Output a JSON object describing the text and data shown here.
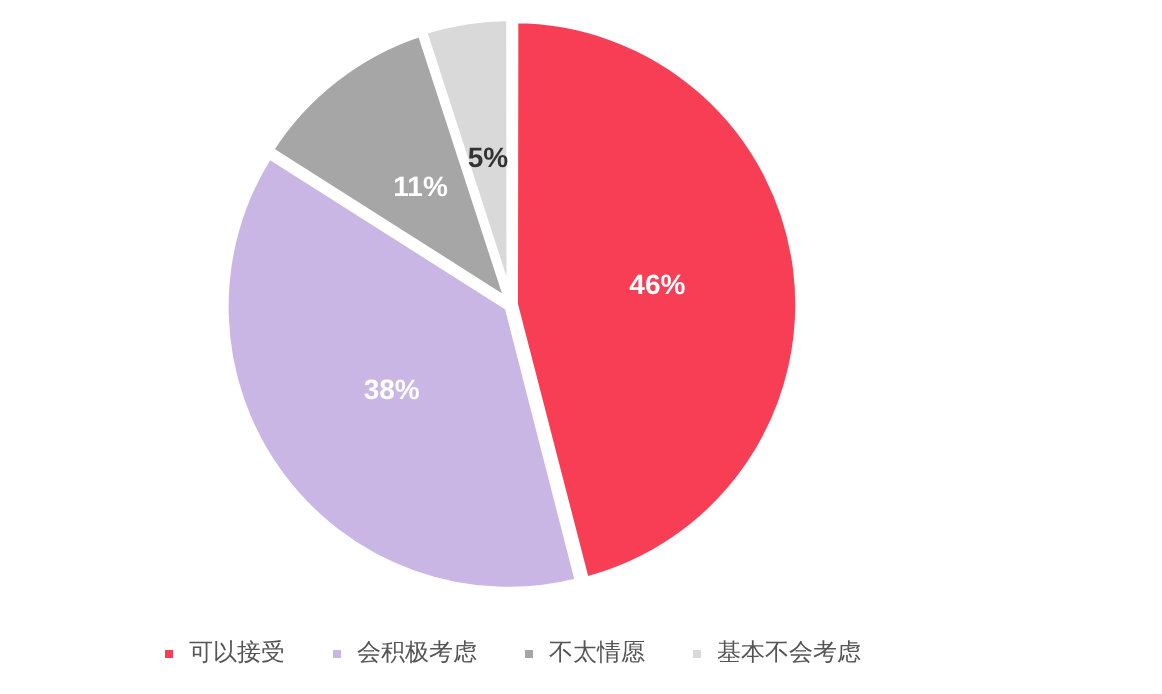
{
  "chart_data": {
    "type": "pie",
    "categories": [
      "可以接受",
      "会积极考虑",
      "不太情愿",
      "基本不会考虑"
    ],
    "values": [
      46,
      38,
      11,
      5
    ],
    "colors": [
      "#f73e55",
      "#c9b6e4",
      "#a6a6a6",
      "#d9d9d9"
    ],
    "value_labels": [
      "46%",
      "38%",
      "11%",
      "5%"
    ],
    "legend": "bottom"
  }
}
